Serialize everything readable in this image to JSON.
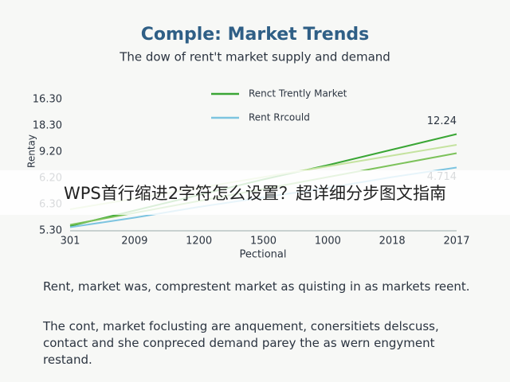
{
  "chart_data": {
    "type": "line",
    "title": "Comple: Market Trends",
    "subtitle": "The dow of rent't market supply and demand",
    "y_label": "Rentay",
    "x_label": "Pectional",
    "categories": [
      "301",
      "2009",
      "1200",
      "1500",
      "1000",
      "2018",
      "2017"
    ],
    "y_labels": [
      "16.30",
      "18.30",
      "9.20",
      "6.20",
      "6.30",
      "5.30"
    ],
    "ylim": [
      5.3,
      16.3
    ],
    "series": [
      {
        "name": "Renct Trently Market",
        "color": "#3aa635",
        "values": [
          5.7,
          7.0,
          8.3,
          9.6,
          10.8,
          12.1,
          13.4
        ]
      },
      {
        "color": "#7cc25a",
        "values": [
          5.8,
          6.8,
          7.8,
          8.8,
          9.8,
          10.8,
          11.8
        ]
      },
      {
        "color": "#c5e3a0",
        "values": [
          7.1,
          8.0,
          8.9,
          9.8,
          10.7,
          11.6,
          12.5
        ]
      },
      {
        "name": "Rent Rrcould",
        "color": "#7cc4e0",
        "values": [
          5.6,
          6.4,
          7.3,
          8.1,
          8.9,
          9.8,
          10.6
        ]
      }
    ],
    "annotations": [
      "12.24",
      "4.714"
    ]
  },
  "banner": "WPS首行缩进2字符怎么设置？超详细分步图文指南",
  "paragraphs": [
    "Rent, market was, comprestent market as quisting in as markets reent.",
    "The cont, market foclusting are anquement, conersitiets delscuss, contact and she conpreced demand parey the as wern engyment restand."
  ]
}
